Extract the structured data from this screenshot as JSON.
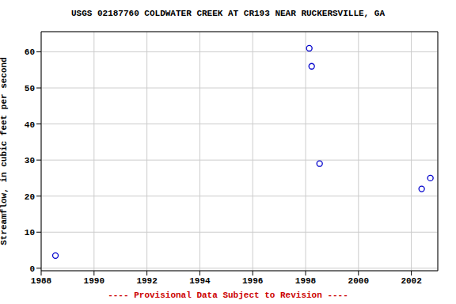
{
  "chart_data": {
    "type": "scatter",
    "title": "USGS 02187760 COLDWATER CREEK AT CR193 NEAR RUCKERSVILLE, GA",
    "subtitle": "---- Provisional Data Subject to Revision ----",
    "y_label": "Streamflow, in cubic feet per second",
    "x": [
      1988.54,
      1998.14,
      1998.23,
      1998.53,
      2002.39,
      2002.72
    ],
    "values": [
      3.5,
      61,
      56,
      29,
      22,
      25
    ],
    "color": "#0000cc",
    "marker": "open_circle",
    "xlim": [
      1988,
      2003
    ],
    "xticks": [
      1988,
      1990,
      1992,
      1994,
      1996,
      1998,
      2000,
      2002
    ],
    "ylim": [
      -0.7,
      65.6
    ],
    "yticks": [
      0,
      10,
      20,
      30,
      40,
      50,
      60
    ],
    "grid": true
  }
}
